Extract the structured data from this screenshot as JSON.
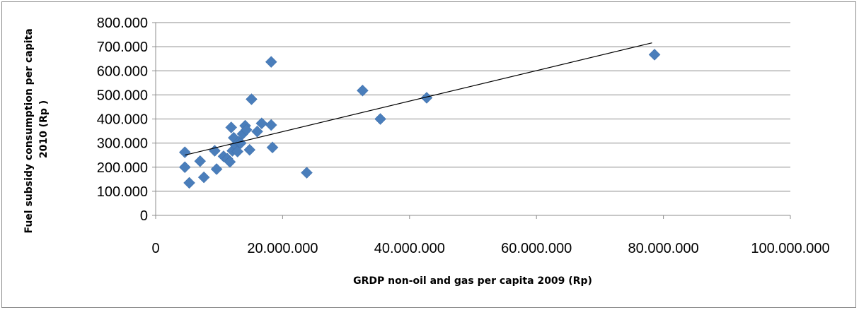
{
  "chart_data": {
    "type": "scatter",
    "xlabel": "GRDP non-oil and gas per capita 2009 (Rp)",
    "ylabel_lines": [
      "Fuel subsidy consumption per capita",
      "2010 (Rp )"
    ],
    "xlim": [
      0,
      100000000
    ],
    "ylim": [
      0,
      800000
    ],
    "x_ticks": [
      0,
      20000000,
      40000000,
      60000000,
      80000000,
      100000000
    ],
    "x_tick_labels": [
      "0",
      "20.000.000",
      "40.000.000",
      "60.000.000",
      "80.000.000",
      "100.000.000"
    ],
    "y_ticks": [
      0,
      100000,
      200000,
      300000,
      400000,
      500000,
      600000,
      700000,
      800000
    ],
    "y_tick_labels": [
      "0",
      "100.000",
      "200.000",
      "300.000",
      "400.000",
      "500.000",
      "600.000",
      "700.000",
      "800.000"
    ],
    "grid": "horizontal",
    "marker": "diamond",
    "marker_color": "#4a7ebb",
    "trendline_color": "#000000",
    "series": [
      {
        "points": [
          [
            4600000,
            262000
          ],
          [
            4600000,
            200000
          ],
          [
            5300000,
            135000
          ],
          [
            7000000,
            225000
          ],
          [
            7600000,
            158000
          ],
          [
            9300000,
            268000
          ],
          [
            9600000,
            192000
          ],
          [
            10700000,
            245000
          ],
          [
            11300000,
            235000
          ],
          [
            11700000,
            222000
          ],
          [
            11900000,
            365000
          ],
          [
            12100000,
            268000
          ],
          [
            12300000,
            322000
          ],
          [
            12600000,
            290000
          ],
          [
            12900000,
            265000
          ],
          [
            13100000,
            305000
          ],
          [
            13400000,
            300000
          ],
          [
            13700000,
            338000
          ],
          [
            14100000,
            372000
          ],
          [
            14300000,
            355000
          ],
          [
            14800000,
            272000
          ],
          [
            15100000,
            482000
          ],
          [
            16000000,
            348000
          ],
          [
            16700000,
            382000
          ],
          [
            18200000,
            375000
          ],
          [
            18200000,
            637000
          ],
          [
            18400000,
            282000
          ],
          [
            23800000,
            177000
          ],
          [
            32600000,
            518000
          ],
          [
            35400000,
            400000
          ],
          [
            42700000,
            488000
          ],
          [
            78600000,
            667000
          ]
        ]
      }
    ],
    "trendline": {
      "type": "linear",
      "x_range": [
        4600000,
        78200000
      ],
      "start": [
        4600000,
        250000
      ],
      "end": [
        78200000,
        716000
      ]
    }
  }
}
